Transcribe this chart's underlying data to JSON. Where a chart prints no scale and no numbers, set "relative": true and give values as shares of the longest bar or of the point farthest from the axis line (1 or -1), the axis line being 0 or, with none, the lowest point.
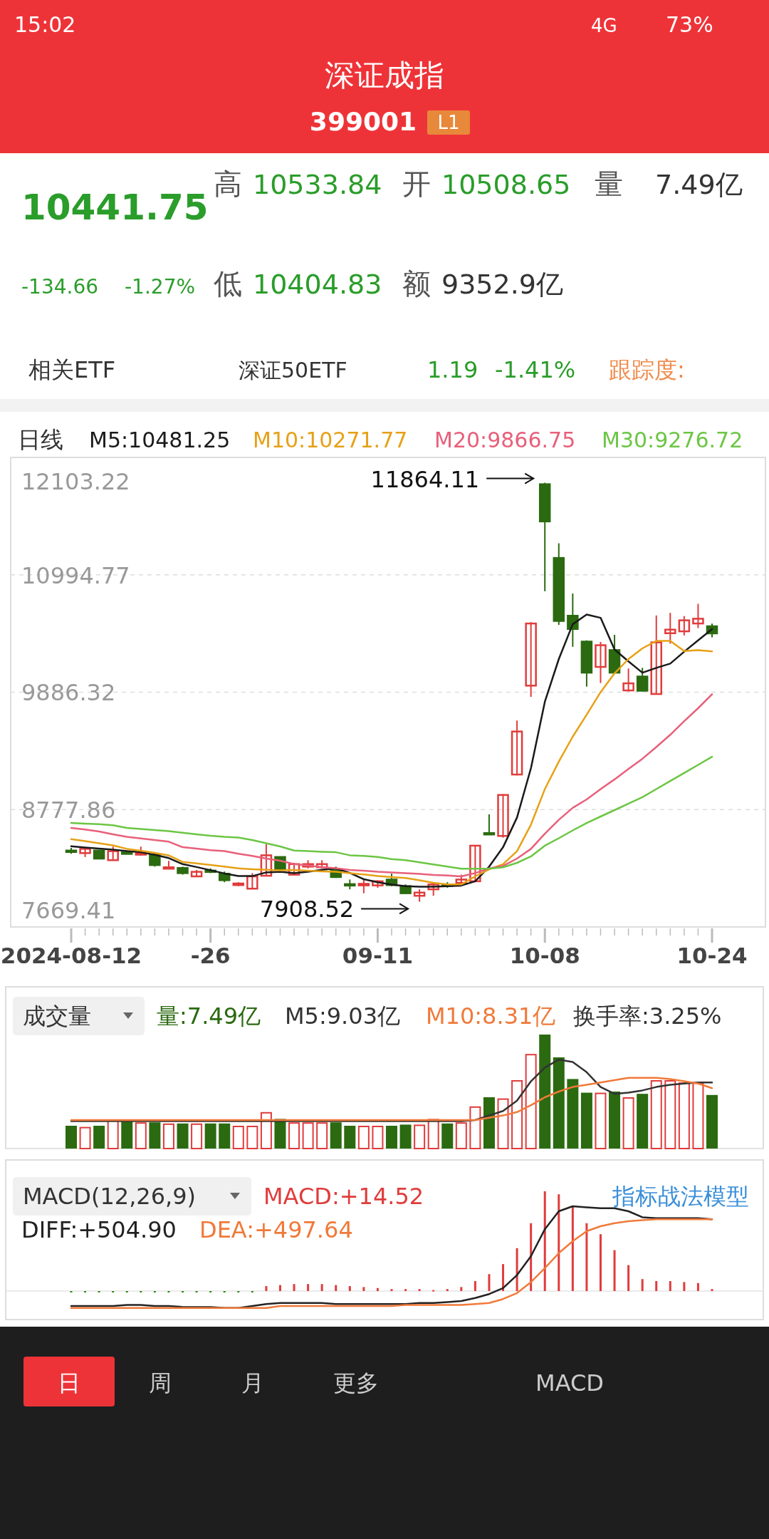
{
  "chart_data": [
    {
      "type": "other",
      "title": "深证成指",
      "subtitle": "399001",
      "annotations": [
        "L1",
        "10441.75",
        "高",
        "10533.84",
        "开",
        "10508.65",
        "量",
        "7.49亿",
        "-134.66",
        "-1.27%",
        "低",
        "10404.83",
        "额",
        "9352.9亿",
        "相关ETF",
        "深证50ETF",
        "1.19",
        "-1.41%",
        "跟踪度:",
        "15:02",
        "4G",
        "73%",
        "日",
        "周",
        "月",
        "更多",
        "MACD"
      ]
    },
    {
      "type": "candlestick",
      "title": "日线",
      "categories": [
        "2024-08-12",
        null,
        null,
        null,
        null,
        null,
        null,
        null,
        null,
        null,
        "-26",
        null,
        null,
        null,
        null,
        null,
        null,
        null,
        null,
        null,
        null,
        null,
        "09-11",
        null,
        null,
        null,
        null,
        null,
        null,
        null,
        null,
        null,
        null,
        null,
        "10-08",
        null,
        null,
        null,
        null,
        null,
        null,
        null,
        null,
        null,
        null,
        null,
        "10-24"
      ],
      "ohlc": [
        [
          8391,
          8416,
          8361,
          8385
        ],
        [
          8367,
          8413,
          8330,
          8407
        ],
        [
          8391,
          8397,
          8309,
          8315
        ],
        [
          8300,
          8428,
          8300,
          8385
        ],
        [
          8373,
          8391,
          8355,
          8364
        ],
        [
          8352,
          8428,
          8342,
          8367
        ],
        [
          8355,
          8367,
          8239,
          8254
        ],
        [
          8220,
          8294,
          8217,
          8233
        ],
        [
          8226,
          8239,
          8163,
          8178
        ],
        [
          8147,
          8208,
          8141,
          8190
        ],
        [
          8202,
          8223,
          8178,
          8193
        ],
        [
          8172,
          8193,
          8092,
          8111
        ],
        [
          8065,
          8092,
          8055,
          8080
        ],
        [
          8031,
          8178,
          8031,
          8147
        ],
        [
          8153,
          8452,
          8147,
          8346
        ],
        [
          8330,
          8336,
          8202,
          8208
        ],
        [
          8163,
          8275,
          8160,
          8263
        ],
        [
          8239,
          8300,
          8223,
          8263
        ],
        [
          8233,
          8300,
          8223,
          8263
        ],
        [
          8208,
          8239,
          8132,
          8141
        ],
        [
          8074,
          8117,
          8025,
          8065
        ],
        [
          8062,
          8117,
          7988,
          8077
        ],
        [
          8062,
          8111,
          8040,
          8101
        ],
        [
          8117,
          8172,
          8055,
          8065
        ],
        [
          8055,
          8071,
          7979,
          7988
        ],
        [
          7964,
          8025,
          7908.52,
          7994
        ],
        [
          8025,
          8086,
          7964,
          8071
        ],
        [
          8071,
          8092,
          8040,
          8062
        ],
        [
          8086,
          8163,
          8071,
          8117
        ],
        [
          8101,
          8437,
          8092,
          8437
        ],
        [
          8556,
          8733,
          8538,
          8544
        ],
        [
          8529,
          8923,
          8513,
          8916
        ],
        [
          9109,
          9619,
          9100,
          9515
        ],
        [
          9948,
          10547,
          9842,
          10535
        ],
        [
          11850,
          11864.11,
          10840,
          11499
        ],
        [
          11154,
          11292,
          10522,
          10559
        ],
        [
          10608,
          10818,
          10315,
          10483
        ],
        [
          10364,
          10376,
          9939,
          10071
        ],
        [
          10125,
          10361,
          9973,
          10330
        ],
        [
          10284,
          10428,
          10064,
          10071
        ],
        [
          9903,
          10110,
          9893,
          9970
        ],
        [
          10034,
          10116,
          9893,
          9900
        ],
        [
          9869,
          10611,
          9863,
          10357
        ],
        [
          10443,
          10635,
          10345,
          10477
        ],
        [
          10461,
          10605,
          10422,
          10565
        ],
        [
          10535,
          10721,
          10492,
          10580
        ],
        [
          10508.65,
          10533.84,
          10404.83,
          10441.75
        ]
      ],
      "colors": [
        "#2b6a10",
        "#e03c3c",
        "#2b6a10",
        "#e03c3c",
        "#2b6a10",
        "#e03c3c",
        "#2b6a10",
        "#e03c3c",
        "#2b6a10",
        "#e03c3c",
        "#2b6a10",
        "#2b6a10",
        "#e03c3c",
        "#e03c3c",
        "#e03c3c",
        "#2b6a10",
        "#e03c3c",
        "#e03c3c",
        "#e03c3c",
        "#2b6a10",
        "#2b6a10",
        "#e03c3c",
        "#e03c3c",
        "#2b6a10",
        "#2b6a10",
        "#e03c3c",
        "#e03c3c",
        "#2b6a10",
        "#e03c3c",
        "#e03c3c",
        "#2b6a10",
        "#e03c3c",
        "#e03c3c",
        "#e03c3c",
        "#2b6a10",
        "#2b6a10",
        "#2b6a10",
        "#2b6a10",
        "#e03c3c",
        "#2b6a10",
        "#e03c3c",
        "#2b6a10",
        "#e03c3c",
        "#e03c3c",
        "#e03c3c",
        "#e03c3c",
        "#2b6a10"
      ],
      "series": [
        {
          "name": "M5:10481.25",
          "type": "line",
          "color": "#1a1a1a",
          "values": [
            8431,
            8420,
            8410,
            8400,
            8385,
            8375,
            8350,
            8320,
            8263,
            8235,
            8205,
            8175,
            8150,
            8150,
            8185,
            8190,
            8178,
            8190,
            8210,
            8223,
            8180,
            8120,
            8092,
            8070,
            8055,
            8050,
            8050,
            8055,
            8060,
            8101,
            8239,
            8422,
            8703,
            9170,
            9796,
            10199,
            10528,
            10620,
            10589,
            10290,
            10177,
            10071,
            10116,
            10156,
            10269,
            10376,
            10481.25
          ]
        },
        {
          "name": "M10:10271.77",
          "type": "line",
          "color": "#e6a117",
          "values": [
            8498,
            8480,
            8460,
            8440,
            8407,
            8390,
            8370,
            8345,
            8284,
            8270,
            8255,
            8240,
            8223,
            8215,
            8210,
            8205,
            8208,
            8200,
            8195,
            8190,
            8178,
            8165,
            8150,
            8140,
            8132,
            8110,
            8086,
            8071,
            8071,
            8147,
            8214,
            8263,
            8385,
            8636,
            8971,
            9231,
            9466,
            9674,
            9887,
            10064,
            10199,
            10300,
            10370,
            10370,
            10275,
            10284,
            10271.77
          ]
        },
        {
          "name": "M20:9866.75",
          "type": "line",
          "color": "#e8607a",
          "values": [
            8605,
            8590,
            8570,
            8545,
            8520,
            8505,
            8490,
            8475,
            8422,
            8410,
            8395,
            8385,
            8361,
            8340,
            8315,
            8295,
            8263,
            8250,
            8235,
            8225,
            8208,
            8200,
            8190,
            8185,
            8178,
            8170,
            8160,
            8155,
            8147,
            8178,
            8223,
            8245,
            8315,
            8407,
            8550,
            8681,
            8794,
            8874,
            8971,
            9063,
            9161,
            9258,
            9368,
            9484,
            9613,
            9735,
            9866.75
          ]
        },
        {
          "name": "M30:9276.72",
          "type": "line",
          "color": "#6cc644",
          "values": [
            8651,
            8645,
            8640,
            8630,
            8605,
            8595,
            8585,
            8575,
            8559,
            8545,
            8530,
            8520,
            8513,
            8490,
            8460,
            8430,
            8391,
            8385,
            8380,
            8375,
            8346,
            8340,
            8330,
            8310,
            8300,
            8280,
            8260,
            8240,
            8220,
            8220,
            8220,
            8233,
            8275,
            8336,
            8437,
            8507,
            8581,
            8651,
            8712,
            8773,
            8834,
            8895,
            8971,
            9048,
            9124,
            9200,
            9276.72
          ]
        }
      ],
      "ylim": [
        7669.41,
        12103.22
      ],
      "yticks": [
        7669.41,
        8777.86,
        9886.32,
        10994.77,
        12103.22
      ],
      "grid": "y",
      "annotations": [
        {
          "text": "11864.11",
          "x": "10-08",
          "y": 11864.11
        },
        "7908.52"
      ]
    },
    {
      "type": "bar",
      "title": "成交量",
      "relative": true,
      "categories": [
        null,
        null,
        null,
        null,
        null,
        null,
        null,
        null,
        null,
        null,
        null,
        null,
        null,
        null,
        null,
        null,
        null,
        null,
        null,
        null,
        null,
        null,
        null,
        null,
        null,
        null,
        null,
        null,
        null,
        null,
        null,
        null,
        null,
        null,
        null,
        null,
        null,
        null,
        null,
        null,
        null,
        null,
        null,
        null,
        null,
        null,
        null
      ],
      "series": [
        {
          "name": "量:7.49亿",
          "type": "bar",
          "color": "#2b6a10",
          "colors": [
            "#2b6a10",
            "#e03c3c",
            "#2b6a10",
            "#e03c3c",
            "#2b6a10",
            "#e03c3c",
            "#2b6a10",
            "#e03c3c",
            "#2b6a10",
            "#e03c3c",
            "#2b6a10",
            "#2b6a10",
            "#e03c3c",
            "#e03c3c",
            "#e03c3c",
            "#2b6a10",
            "#e03c3c",
            "#e03c3c",
            "#e03c3c",
            "#2b6a10",
            "#2b6a10",
            "#e03c3c",
            "#e03c3c",
            "#2b6a10",
            "#2b6a10",
            "#e03c3c",
            "#e03c3c",
            "#2b6a10",
            "#e03c3c",
            "#e03c3c",
            "#2b6a10",
            "#e03c3c",
            "#e03c3c",
            "#e03c3c",
            "#2b6a10",
            "#2b6a10",
            "#2b6a10",
            "#2b6a10",
            "#e03c3c",
            "#2b6a10",
            "#e03c3c",
            "#2b6a10",
            "#e03c3c",
            "#e03c3c",
            "#e03c3c",
            "#e03c3c",
            "#2b6a10"
          ],
          "values": [
            0.2,
            0.19,
            0.2,
            0.25,
            0.24,
            0.23,
            0.23,
            0.22,
            0.22,
            0.22,
            0.22,
            0.22,
            0.2,
            0.2,
            0.32,
            0.26,
            0.23,
            0.23,
            0.23,
            0.23,
            0.2,
            0.2,
            0.2,
            0.2,
            0.21,
            0.21,
            0.26,
            0.22,
            0.23,
            0.37,
            0.45,
            0.44,
            0.6,
            0.83,
            1,
            0.8,
            0.61,
            0.49,
            0.49,
            0.5,
            0.45,
            0.48,
            0.6,
            0.6,
            0.58,
            0.58,
            0.47
          ]
        },
        {
          "name": "M5:9.03亿",
          "type": "line",
          "color": "#333333",
          "values": [
            0.24,
            0.24,
            0.24,
            0.24,
            0.24,
            0.24,
            0.24,
            0.24,
            0.24,
            0.24,
            0.24,
            0.24,
            0.24,
            0.24,
            0.24,
            0.24,
            0.24,
            0.24,
            0.24,
            0.24,
            0.24,
            0.24,
            0.24,
            0.24,
            0.24,
            0.24,
            0.24,
            0.24,
            0.24,
            0.25,
            0.29,
            0.33,
            0.42,
            0.59,
            0.71,
            0.78,
            0.76,
            0.67,
            0.54,
            0.48,
            0.49,
            0.51,
            0.54,
            0.56,
            0.57,
            0.58,
            0.58
          ]
        },
        {
          "name": "M10:8.31亿",
          "type": "line",
          "color": "#f07a3a",
          "values": [
            0.25,
            0.25,
            0.25,
            0.25,
            0.25,
            0.25,
            0.25,
            0.25,
            0.25,
            0.25,
            0.25,
            0.25,
            0.25,
            0.25,
            0.25,
            0.25,
            0.25,
            0.25,
            0.25,
            0.25,
            0.25,
            0.25,
            0.25,
            0.25,
            0.25,
            0.25,
            0.25,
            0.25,
            0.25,
            0.25,
            0.27,
            0.29,
            0.32,
            0.38,
            0.45,
            0.5,
            0.54,
            0.56,
            0.58,
            0.6,
            0.62,
            0.62,
            0.62,
            0.61,
            0.59,
            0.57,
            0.53
          ]
        }
      ],
      "annotations": [
        "换手率:3.25%"
      ]
    },
    {
      "type": "bar",
      "title": "MACD(12,26,9)",
      "relative": true,
      "categories": [
        null,
        null,
        null,
        null,
        null,
        null,
        null,
        null,
        null,
        null,
        null,
        null,
        null,
        null,
        null,
        null,
        null,
        null,
        null,
        null,
        null,
        null,
        null,
        null,
        null,
        null,
        null,
        null,
        null,
        null,
        null,
        null,
        null,
        null,
        null,
        null,
        null,
        null,
        null,
        null,
        null,
        null,
        null,
        null,
        null,
        null,
        null
      ],
      "series": [
        {
          "name": "MACD:+14.52",
          "type": "bar",
          "color": "#e03c3c",
          "colors": [
            "#2b8a10",
            "#2b8a10",
            "#2b8a10",
            "#2b8a10",
            "#2b8a10",
            "#2b8a10",
            "#2b8a10",
            "#2b8a10",
            "#2b8a10",
            "#2b8a10",
            "#2b8a10",
            "#2b8a10",
            "#2b8a10",
            "#2b8a10",
            "#e03c3c",
            "#e03c3c",
            "#e03c3c",
            "#e03c3c",
            "#e03c3c",
            "#e03c3c",
            "#e03c3c",
            "#e03c3c",
            "#e03c3c",
            "#e03c3c",
            "#e03c3c",
            "#e03c3c",
            "#e03c3c",
            "#e03c3c",
            "#e03c3c",
            "#e03c3c",
            "#e03c3c",
            "#e03c3c",
            "#e03c3c",
            "#e03c3c",
            "#e03c3c",
            "#e03c3c",
            "#e03c3c",
            "#e03c3c",
            "#e03c3c",
            "#e03c3c",
            "#e03c3c",
            "#e03c3c",
            "#e03c3c",
            "#e03c3c",
            "#e03c3c",
            "#e03c3c",
            "#e03c3c"
          ],
          "values": [
            -0.01,
            -0.01,
            -0.01,
            -0.01,
            -0.01,
            -0.01,
            -0.01,
            -0.01,
            -0.01,
            -0.01,
            -0.01,
            -0.01,
            -0.01,
            -0.01,
            0.05,
            0.06,
            0.07,
            0.07,
            0.07,
            0.06,
            0.05,
            0.04,
            0.03,
            0.02,
            0.02,
            0.02,
            0.01,
            0.02,
            0.04,
            0.1,
            0.17,
            0.27,
            0.43,
            0.68,
            1,
            0.97,
            0.85,
            0.68,
            0.57,
            0.41,
            0.26,
            0.12,
            0.1,
            0.1,
            0.09,
            0.08,
            0.02
          ]
        },
        {
          "name": "DIFF:+504.90",
          "type": "line",
          "color": "#222222",
          "values": [
            -0.15,
            -0.15,
            -0.15,
            -0.15,
            -0.14,
            -0.14,
            -0.15,
            -0.15,
            -0.16,
            -0.16,
            -0.16,
            -0.17,
            -0.17,
            -0.15,
            -0.13,
            -0.12,
            -0.12,
            -0.12,
            -0.12,
            -0.13,
            -0.13,
            -0.13,
            -0.13,
            -0.13,
            -0.13,
            -0.12,
            -0.12,
            -0.11,
            -0.1,
            -0.07,
            -0.03,
            0.03,
            0.16,
            0.35,
            0.62,
            0.8,
            0.85,
            0.84,
            0.83,
            0.83,
            0.8,
            0.74,
            0.73,
            0.73,
            0.73,
            0.73,
            0.72
          ]
        },
        {
          "name": "DEA:+497.64",
          "type": "line",
          "color": "#f07a3a",
          "values": [
            -0.17,
            -0.17,
            -0.17,
            -0.17,
            -0.17,
            -0.17,
            -0.17,
            -0.17,
            -0.17,
            -0.17,
            -0.17,
            -0.17,
            -0.17,
            -0.17,
            -0.17,
            -0.15,
            -0.15,
            -0.15,
            -0.15,
            -0.15,
            -0.15,
            -0.15,
            -0.15,
            -0.15,
            -0.14,
            -0.14,
            -0.14,
            -0.14,
            -0.14,
            -0.13,
            -0.12,
            -0.08,
            -0.02,
            0.09,
            0.23,
            0.38,
            0.5,
            0.6,
            0.65,
            0.68,
            0.7,
            0.71,
            0.72,
            0.72,
            0.72,
            0.72,
            0.72
          ]
        }
      ],
      "annotations": [
        "指标战法模型"
      ]
    }
  ]
}
